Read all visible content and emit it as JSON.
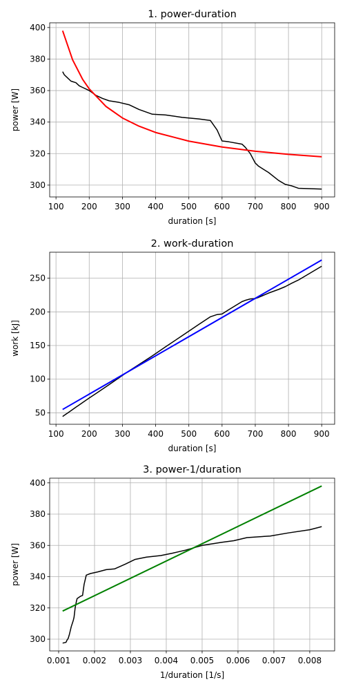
{
  "chart_data": [
    {
      "type": "line",
      "title": "1. power-duration",
      "xlabel": "duration [s]",
      "ylabel": "power [W]",
      "xlim": [
        81,
        939
      ],
      "ylim": [
        292.5,
        403
      ],
      "xticks": [
        100,
        200,
        300,
        400,
        500,
        600,
        700,
        800,
        900
      ],
      "yticks": [
        300,
        320,
        340,
        360,
        380,
        400
      ],
      "grid": true,
      "series": [
        {
          "color": "#000000",
          "x": [
            120,
            125,
            135,
            145,
            160,
            170,
            180,
            200,
            220,
            240,
            260,
            290,
            320,
            350,
            390,
            430,
            480,
            530,
            565,
            585,
            600,
            620,
            660,
            670,
            685,
            700,
            710,
            740,
            770,
            790,
            810,
            830,
            900
          ],
          "values": [
            372,
            370,
            368,
            366,
            365,
            363,
            362,
            360,
            357,
            355,
            353.5,
            352.5,
            351,
            348,
            345,
            344.5,
            343,
            342,
            341,
            335,
            328,
            327.5,
            326,
            324,
            320,
            314,
            312,
            308,
            303,
            300.5,
            299.5,
            298,
            297.5
          ]
        },
        {
          "color": "#ff0000",
          "x": [
            120,
            150,
            180,
            200,
            250,
            300,
            350,
            400,
            500,
            600,
            700,
            800,
            900
          ],
          "values": [
            398,
            379.5,
            367.2,
            361.1,
            350,
            342.6,
            337.4,
            333.4,
            327.9,
            324.2,
            321.5,
            319.5,
            318
          ]
        }
      ]
    },
    {
      "type": "line",
      "title": "2. work-duration",
      "xlabel": "duration [s]",
      "ylabel": "work [kJ]",
      "xlim": [
        81,
        939
      ],
      "ylim": [
        33,
        288.6
      ],
      "xticks": [
        100,
        200,
        300,
        400,
        500,
        600,
        700,
        800,
        900
      ],
      "yticks": [
        50,
        100,
        150,
        200,
        250
      ],
      "grid": true,
      "series": [
        {
          "color": "#000000",
          "x": [
            120,
            125,
            135,
            145,
            160,
            170,
            180,
            200,
            220,
            240,
            260,
            290,
            320,
            350,
            390,
            430,
            480,
            530,
            565,
            585,
            600,
            620,
            660,
            670,
            685,
            700,
            710,
            740,
            770,
            790,
            810,
            830,
            900
          ],
          "values": [
            44.6,
            46.3,
            49.7,
            53.1,
            58.4,
            61.7,
            65.2,
            72,
            78.5,
            85.2,
            91.9,
            102.2,
            112.3,
            121.8,
            134.6,
            148.1,
            164.6,
            181.3,
            192.7,
            196,
            196.8,
            203.1,
            215.2,
            217.1,
            219.2,
            219.8,
            221.5,
            227.9,
            233.3,
            237.4,
            242.6,
            247.3,
            267.8
          ]
        },
        {
          "color": "#0000ff",
          "x": [
            120,
            900
          ],
          "values": [
            55,
            277
          ]
        }
      ]
    },
    {
      "type": "line",
      "title": "3. power-1/duration",
      "xlabel": "1/duration [1/s]",
      "ylabel": "power [W]",
      "xlim": [
        0.00075,
        0.008694
      ],
      "ylim": [
        292.5,
        403
      ],
      "xticks": [
        0.001,
        0.002,
        0.003,
        0.004,
        0.005,
        0.006,
        0.007,
        0.008
      ],
      "yticks": [
        300,
        320,
        340,
        360,
        380,
        400
      ],
      "grid": true,
      "series": [
        {
          "color": "#000000",
          "x": [
            0.008333,
            0.008,
            0.007407,
            0.006897,
            0.00625,
            0.005882,
            0.005556,
            0.005,
            0.004545,
            0.004167,
            0.003846,
            0.003448,
            0.003125,
            0.002857,
            0.002564,
            0.002326,
            0.002083,
            0.001887,
            0.00177,
            0.001709,
            0.001667,
            0.001613,
            0.001515,
            0.001493,
            0.00146,
            0.001429,
            0.001408,
            0.001351,
            0.001299,
            0.001266,
            0.001235,
            0.001205,
            0.001111
          ],
          "values": [
            372,
            370,
            368,
            366,
            365,
            363,
            362,
            360,
            357,
            355,
            353.5,
            352.5,
            351,
            348,
            345,
            344.5,
            343,
            342,
            341,
            335,
            328,
            327.5,
            326,
            324,
            320,
            314,
            312,
            308,
            303,
            300.5,
            299.5,
            298,
            297.5
          ]
        },
        {
          "color": "#008000",
          "x": [
            0.001111,
            0.008333
          ],
          "values": [
            318,
            398
          ]
        }
      ]
    }
  ]
}
